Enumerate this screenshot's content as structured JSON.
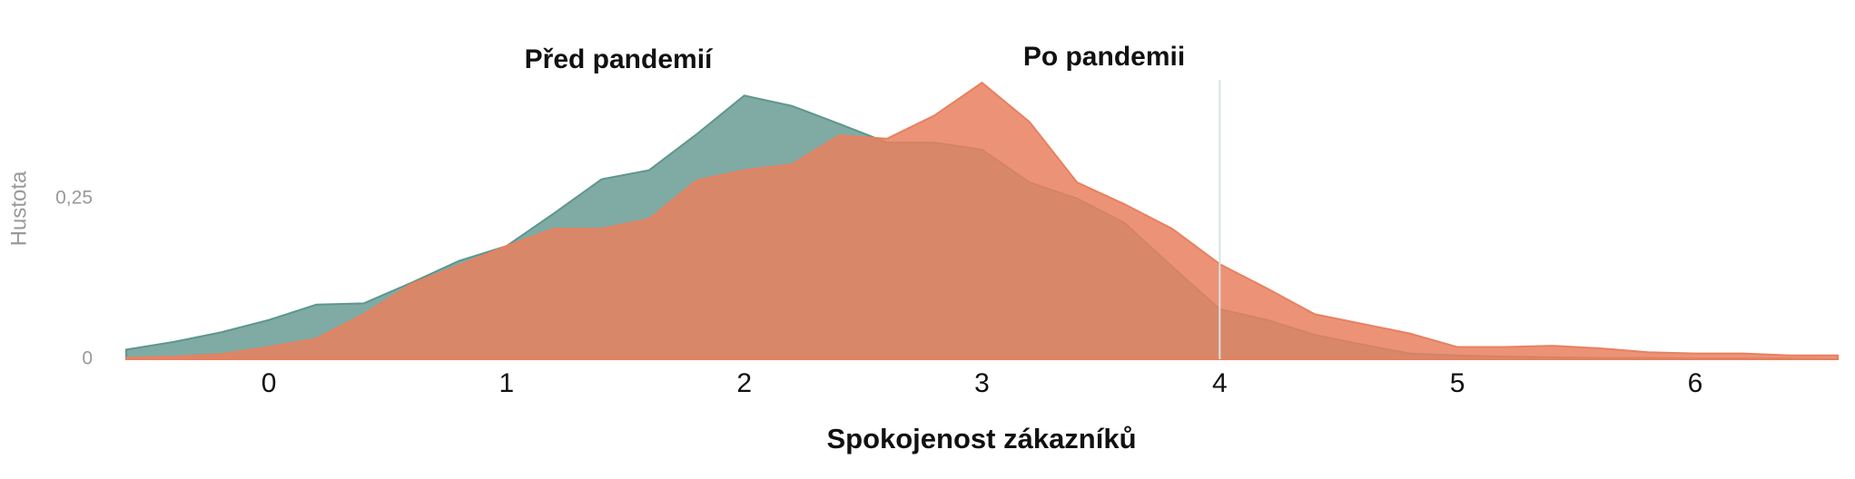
{
  "chart_data": {
    "type": "area",
    "xlabel": "Spokojenost zákazníků",
    "ylabel": "Hustota",
    "x": [
      -0.6,
      -0.4,
      -0.2,
      0,
      0.2,
      0.4,
      0.6,
      0.8,
      1.0,
      1.2,
      1.4,
      1.6,
      1.8,
      2.0,
      2.2,
      2.4,
      2.6,
      2.8,
      3.0,
      3.2,
      3.4,
      3.6,
      3.8,
      4.0,
      4.2,
      4.4,
      4.6,
      4.8,
      5.0,
      5.2,
      5.4,
      5.6,
      5.8,
      6.0,
      6.2,
      6.4,
      6.6
    ],
    "series": [
      {
        "name": "Před pandemií",
        "color": "#5f968d",
        "values": [
          0.015,
          0.027,
          0.042,
          0.061,
          0.085,
          0.087,
          0.119,
          0.153,
          0.176,
          0.227,
          0.28,
          0.294,
          0.35,
          0.41,
          0.394,
          0.366,
          0.337,
          0.337,
          0.326,
          0.275,
          0.25,
          0.212,
          0.144,
          0.078,
          0.061,
          0.038,
          0.023,
          0.009,
          0.006,
          0.004,
          0.003,
          0.002,
          0.002,
          0.001,
          0.001,
          0.001,
          0
        ]
      },
      {
        "name": "Po pandemii",
        "color": "#e9805f",
        "values": [
          0.002,
          0.004,
          0.008,
          0.019,
          0.032,
          0.07,
          0.117,
          0.146,
          0.176,
          0.203,
          0.203,
          0.218,
          0.278,
          0.294,
          0.303,
          0.348,
          0.343,
          0.379,
          0.43,
          0.369,
          0.275,
          0.241,
          0.203,
          0.148,
          0.11,
          0.07,
          0.055,
          0.04,
          0.019,
          0.019,
          0.021,
          0.017,
          0.011,
          0.009,
          0.009,
          0.006,
          0.006
        ]
      }
    ],
    "xlim": [
      -0.6,
      6.6
    ],
    "xticks": [
      0,
      1,
      2,
      3,
      4,
      5,
      6
    ],
    "ylim": [
      0,
      0.45
    ],
    "yticks": [
      0,
      {
        "value": 0.25,
        "label": "0,25"
      }
    ],
    "vline": 4
  }
}
